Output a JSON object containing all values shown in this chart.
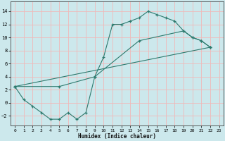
{
  "title": "",
  "xlabel": "Humidex (Indice chaleur)",
  "ylabel": "",
  "bg_color": "#cce8ec",
  "grid_color": "#f0b8b8",
  "line_color": "#2d7a6e",
  "xlim": [
    -0.5,
    23.5
  ],
  "ylim": [
    -3.5,
    15.5
  ],
  "xticks": [
    0,
    1,
    2,
    3,
    4,
    5,
    6,
    7,
    8,
    9,
    10,
    11,
    12,
    13,
    14,
    15,
    16,
    17,
    18,
    19,
    20,
    21,
    22,
    23
  ],
  "yticks": [
    -2,
    0,
    2,
    4,
    6,
    8,
    10,
    12,
    14
  ],
  "line1_x": [
    0,
    1,
    2,
    3,
    4,
    5,
    6,
    7,
    8,
    9,
    10,
    11,
    12,
    13,
    14,
    15,
    16,
    17,
    18,
    19,
    20,
    21,
    22
  ],
  "line1_y": [
    2.5,
    0.5,
    -0.5,
    -1.5,
    -2.5,
    -2.5,
    -1.5,
    -2.5,
    -1.5,
    4.0,
    7.0,
    12.0,
    12.0,
    12.5,
    13.0,
    14.0,
    13.5,
    13.0,
    12.5,
    11.0,
    10.0,
    9.5,
    8.5
  ],
  "line2_x": [
    0,
    22
  ],
  "line2_y": [
    2.5,
    8.5
  ],
  "line3_x": [
    0,
    5,
    9,
    14,
    19,
    20,
    21,
    22
  ],
  "line3_y": [
    2.5,
    2.5,
    4.0,
    9.5,
    11.0,
    10.0,
    9.5,
    8.5
  ]
}
